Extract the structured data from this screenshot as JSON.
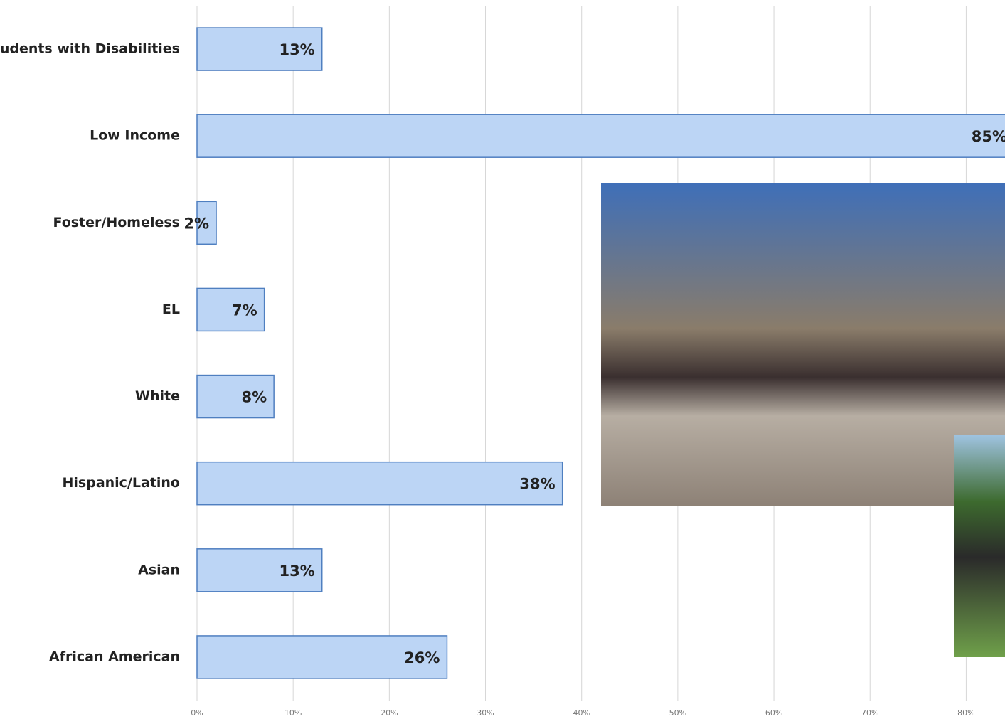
{
  "chart_data": {
    "type": "barh",
    "categories": [
      "Students with Disabilities",
      "Low Income",
      "Foster/Homeless",
      "EL",
      "White",
      "Hispanic/Latino",
      "Asian",
      "African American"
    ],
    "values": [
      13,
      85,
      2,
      7,
      8,
      38,
      13,
      26
    ],
    "value_labels": [
      "13%",
      "85%",
      "2%",
      "7%",
      "8%",
      "38%",
      "13%",
      "26%"
    ],
    "color": "#bcd5f5",
    "xlim": [
      0,
      85
    ],
    "xticks": [
      {
        "value": 0,
        "label": "0%"
      },
      {
        "value": 10,
        "label": "10%"
      },
      {
        "value": 20,
        "label": "20%"
      },
      {
        "value": 30,
        "label": "30%"
      },
      {
        "value": 40,
        "label": "40%"
      },
      {
        "value": 50,
        "label": "50%"
      },
      {
        "value": 60,
        "label": "60%"
      },
      {
        "value": 70,
        "label": "70%"
      },
      {
        "value": 80,
        "label": "80%"
      }
    ],
    "grid": true
  }
}
